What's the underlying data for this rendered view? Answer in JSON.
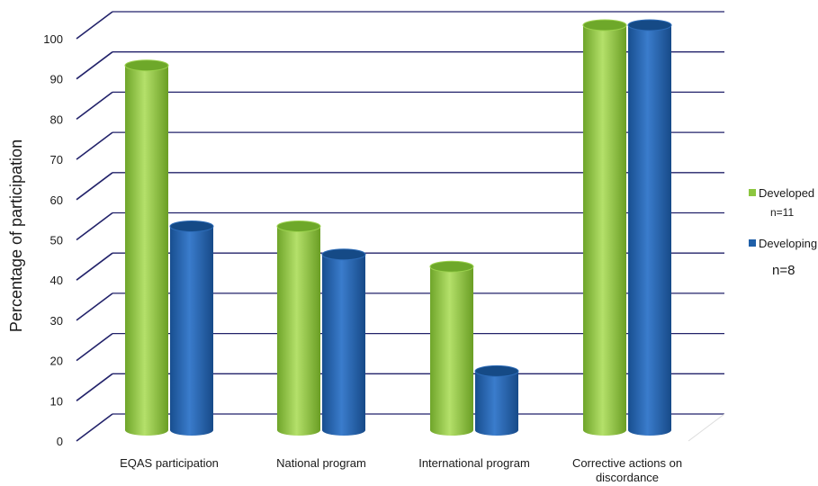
{
  "chart_data": {
    "type": "bar",
    "title": "",
    "xlabel": "",
    "ylabel": "Percentage of participation",
    "ylim": [
      0,
      100
    ],
    "yticks": [
      0,
      10,
      20,
      30,
      40,
      50,
      60,
      70,
      80,
      90,
      100
    ],
    "grid": true,
    "legend_position": "right",
    "categories": [
      [
        "EQAS participation"
      ],
      [
        "National program"
      ],
      [
        "International program"
      ],
      [
        "Corrective actions on",
        "discordance"
      ]
    ],
    "series": [
      {
        "name": "Developed",
        "note": "n=11",
        "color": "#8cc63f",
        "values": [
          90,
          50,
          40,
          100
        ]
      },
      {
        "name": "Developing",
        "note": "n=8",
        "color": "#1f5fa8",
        "values": [
          50,
          43,
          14,
          100
        ]
      }
    ]
  }
}
